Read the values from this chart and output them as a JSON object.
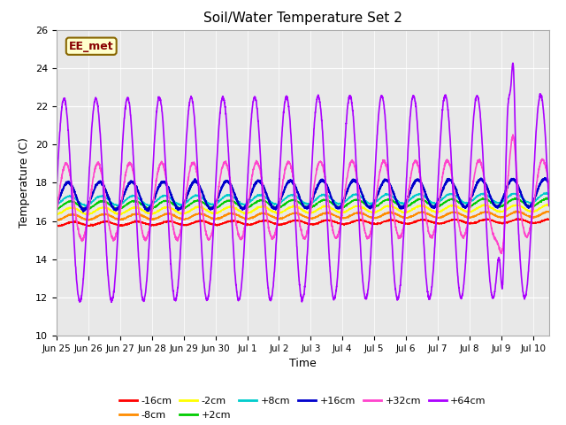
{
  "title": "Soil/Water Temperature Set 2",
  "xlabel": "Time",
  "ylabel": "Temperature (C)",
  "ylim": [
    10,
    26
  ],
  "xlim_days": [
    0,
    15.5
  ],
  "x_tick_labels": [
    "Jun 25",
    "Jun 26",
    "Jun 27",
    "Jun 28",
    "Jun 29",
    "Jun 30",
    "Jul 1",
    "Jul 2",
    "Jul 3",
    "Jul 4",
    "Jul 5",
    "Jul 6",
    "Jul 7",
    "Jul 8",
    "Jul 9",
    "Jul 10"
  ],
  "x_tick_positions": [
    0,
    1,
    2,
    3,
    4,
    5,
    6,
    7,
    8,
    9,
    10,
    11,
    12,
    13,
    14,
    15
  ],
  "colors": {
    "-16cm": "#ff0000",
    "-8cm": "#ff8c00",
    "-2cm": "#ffff00",
    "+2cm": "#00cc00",
    "+8cm": "#00cccc",
    "+16cm": "#0000cc",
    "+32cm": "#ff44cc",
    "+64cm": "#aa00ff"
  },
  "series_order": [
    "-16cm",
    "-8cm",
    "-2cm",
    "+2cm",
    "+8cm",
    "+16cm",
    "+32cm",
    "+64cm"
  ],
  "label_box_text": "EE_met",
  "fig_bg": "#ffffff",
  "plot_bg": "#e8e8e8"
}
